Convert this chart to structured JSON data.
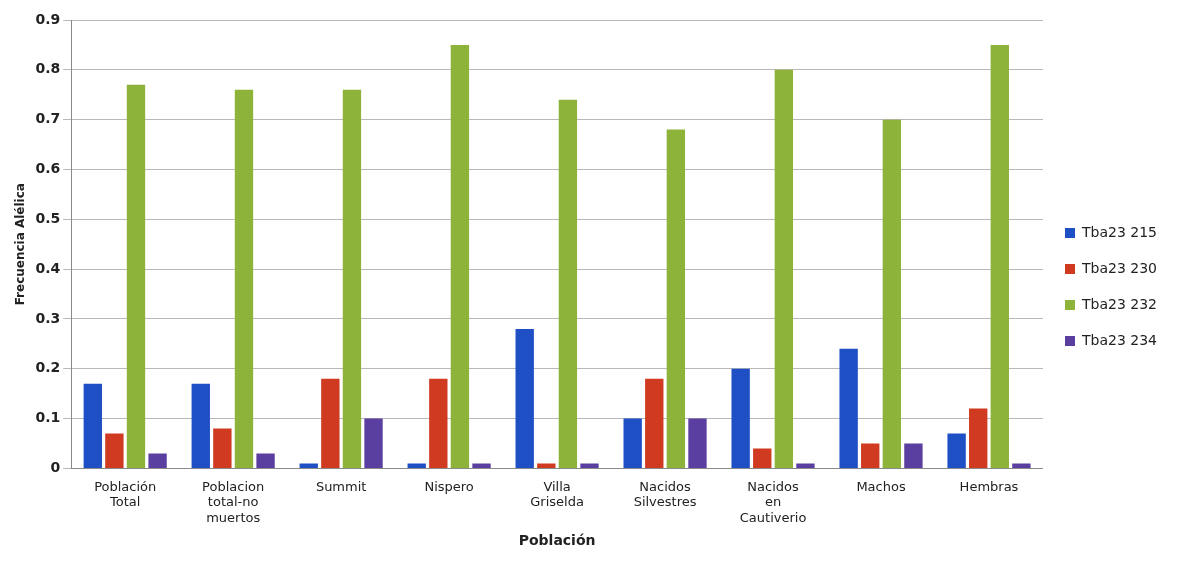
{
  "chart_data": {
    "type": "bar",
    "xlabel": "Población",
    "ylabel": "Frecuencia Alélica",
    "categories": [
      "Población Total",
      "Poblacion total-no muertos",
      "Summit",
      "Nispero",
      "Villa Griselda",
      "Nacidos Silvestres",
      "Nacidos en Cautiverio",
      "Machos",
      "Hembras"
    ],
    "series": [
      {
        "name": "Tba23 215",
        "color": "#1f4fc4",
        "values": [
          0.17,
          0.17,
          0.01,
          0.01,
          0.28,
          0.1,
          0.2,
          0.24,
          0.07
        ]
      },
      {
        "name": "Tba23 230",
        "color": "#d03a20",
        "values": [
          0.07,
          0.08,
          0.18,
          0.18,
          0.01,
          0.18,
          0.04,
          0.05,
          0.12
        ]
      },
      {
        "name": "Tba23 232",
        "color": "#8db33a",
        "values": [
          0.77,
          0.76,
          0.76,
          0.85,
          0.74,
          0.68,
          0.8,
          0.7,
          0.85
        ]
      },
      {
        "name": "Tba23 234",
        "color": "#5a3fa0",
        "values": [
          0.03,
          0.03,
          0.1,
          0.01,
          0.01,
          0.1,
          0.01,
          0.05,
          0.01
        ]
      }
    ],
    "ylim": [
      0,
      0.9
    ],
    "yticks": [
      0,
      0.1,
      0.2,
      0.3,
      0.4,
      0.5,
      0.6,
      0.7,
      0.8,
      0.9
    ],
    "grid": "y",
    "legend": "right"
  }
}
